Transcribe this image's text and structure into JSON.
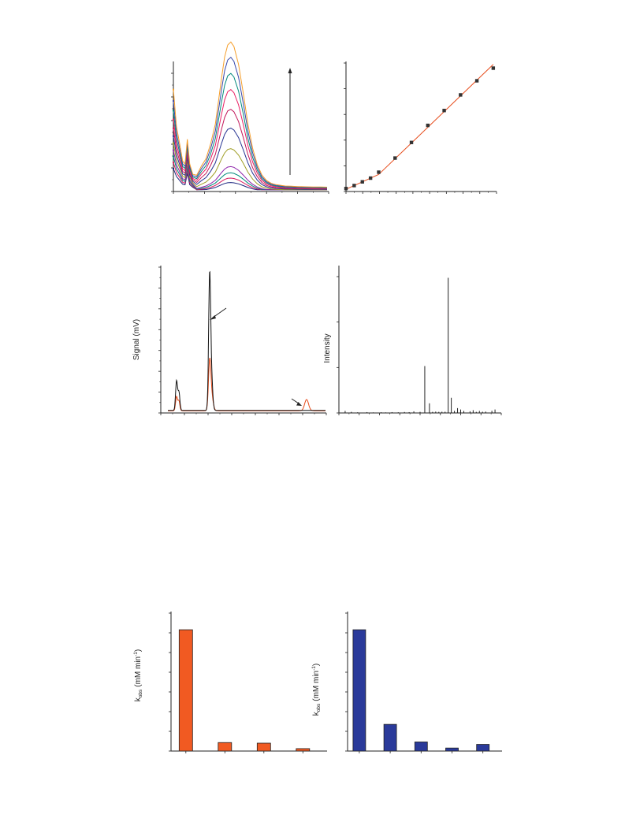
{
  "chart_data": [
    {
      "type": "line",
      "panel": "uv-vis-spectra",
      "x": [
        0,
        4,
        8,
        12,
        15,
        18,
        21,
        25,
        30,
        36,
        42,
        48,
        54,
        58,
        62,
        66,
        70,
        74,
        78,
        84,
        90,
        96,
        102,
        108,
        114,
        120,
        126,
        132,
        138,
        144,
        152,
        160,
        170,
        180,
        190,
        198
      ],
      "shape": [
        1.0,
        0.72,
        0.45,
        0.35,
        0.4,
        0.55,
        0.4,
        0.25,
        0.17,
        0.17,
        0.22,
        0.32,
        0.45,
        0.6,
        0.76,
        0.9,
        0.98,
        1.0,
        0.97,
        0.85,
        0.66,
        0.45,
        0.29,
        0.18,
        0.11,
        0.07,
        0.05,
        0.04,
        0.035,
        0.03,
        0.028,
        0.026,
        0.024,
        0.023,
        0.022,
        0.021
      ],
      "series": [
        {
          "color": "#1a237e",
          "amp": 6,
          "base": 12,
          "bump": 26
        },
        {
          "color": "#d81b60",
          "amp": 10,
          "base": 15,
          "bump": 33
        },
        {
          "color": "#00897b",
          "amp": 15,
          "base": 18,
          "bump": 40
        },
        {
          "color": "#8e24aa",
          "amp": 21,
          "base": 21,
          "bump": 47
        },
        {
          "color": "#9e9d24",
          "amp": 40,
          "base": 25,
          "bump": 55
        },
        {
          "color": "#283593",
          "amp": 62,
          "base": 29,
          "bump": 63
        },
        {
          "color": "#c2185b",
          "amp": 82,
          "base": 33,
          "bump": 72
        },
        {
          "color": "#e91e63",
          "amp": 103,
          "base": 37,
          "bump": 82
        },
        {
          "color": "#00897b",
          "amp": 120,
          "base": 41,
          "bump": 92
        },
        {
          "color": "#3949ab",
          "amp": 137,
          "base": 45,
          "bump": 103
        },
        {
          "color": "#f59e2a",
          "amp": 153,
          "base": 49,
          "bump": 116
        }
      ],
      "ylim": [
        0,
        148
      ],
      "annotations": [
        "increase-arrow"
      ]
    },
    {
      "type": "scatter",
      "panel": "calibration",
      "x": [
        0,
        1,
        2,
        3,
        4,
        6,
        8,
        10,
        12,
        14,
        16,
        18
      ],
      "y": [
        0.1,
        0.5,
        1.0,
        1.5,
        2.3,
        4.2,
        6.3,
        8.6,
        10.6,
        12.7,
        14.6,
        16.3
      ],
      "fit": {
        "color": "#e64a19",
        "segments": [
          [
            [
              0,
              0.0
            ],
            [
              4,
              2.0
            ]
          ],
          [
            [
              4,
              2.0
            ],
            [
              18,
              16.8
            ]
          ]
        ]
      },
      "xlim": [
        0,
        18.4
      ],
      "ylim": [
        -0.3,
        17.2
      ]
    },
    {
      "type": "line",
      "panel": "chromatogram",
      "ylabel": "Signal (mV)",
      "xlim": [
        0,
        21
      ],
      "ylim": [
        0,
        100
      ],
      "series": [
        {
          "color": "#111111",
          "peaks": [
            [
              2.0,
              21,
              0.12
            ],
            [
              2.3,
              13,
              0.12
            ],
            [
              6.2,
              95,
              0.13
            ],
            [
              6.45,
              20,
              0.15
            ]
          ],
          "baseline": 1.8
        },
        {
          "color": "#e64a19",
          "peaks": [
            [
              2.0,
              10,
              0.12
            ],
            [
              2.3,
              7,
              0.12
            ],
            [
              6.2,
              33,
              0.15
            ],
            [
              6.45,
              10,
              0.2
            ],
            [
              18.5,
              8,
              0.25
            ]
          ],
          "baseline": 1.6
        }
      ],
      "annotations": [
        "peak-arrow-main",
        "peak-arrow-minor"
      ]
    },
    {
      "type": "bar",
      "panel": "mass-spectrum",
      "ylabel": "Intensity",
      "x": [
        4,
        8,
        12,
        18,
        22,
        27,
        30,
        34,
        38,
        42,
        45,
        48,
        52,
        55,
        58,
        60,
        62,
        64,
        66,
        68,
        70,
        72,
        74,
        76,
        78,
        80,
        84,
        86,
        88,
        90,
        92,
        94,
        98,
        100
      ],
      "values": [
        1.5,
        0.8,
        0.5,
        0.6,
        0.4,
        0.5,
        0.4,
        0.6,
        0.5,
        0.7,
        0.6,
        1.2,
        0.8,
        34,
        7,
        0.8,
        1.0,
        0.8,
        0.9,
        0.9,
        98,
        11,
        1.5,
        3.5,
        2.5,
        1.5,
        1.2,
        2.0,
        0.8,
        1.5,
        0.9,
        1.0,
        1.6,
        2.5
      ],
      "xlim": [
        0,
        104
      ],
      "ylim": [
        0,
        100
      ]
    },
    {
      "type": "bar",
      "panel": "kobs-orange",
      "ylabel_main": "k",
      "ylabel_sub": "obs",
      "ylabel_unit": "(mM min",
      "ylabel_sup": "-1",
      "ylabel_close": ")",
      "color": "#f15a22",
      "values": [
        1.0,
        0.07,
        0.065,
        0.02
      ],
      "ylim": [
        0,
        1.15
      ]
    },
    {
      "type": "bar",
      "panel": "kobs-blue",
      "ylabel_main": "k",
      "ylabel_sub": "obs",
      "ylabel_unit": "(mM min",
      "ylabel_sup": "-1",
      "ylabel_close": ")",
      "color": "#2a3a9a",
      "values": [
        1.0,
        0.22,
        0.075,
        0.025,
        0.055
      ],
      "ylim": [
        0,
        1.15
      ]
    }
  ]
}
